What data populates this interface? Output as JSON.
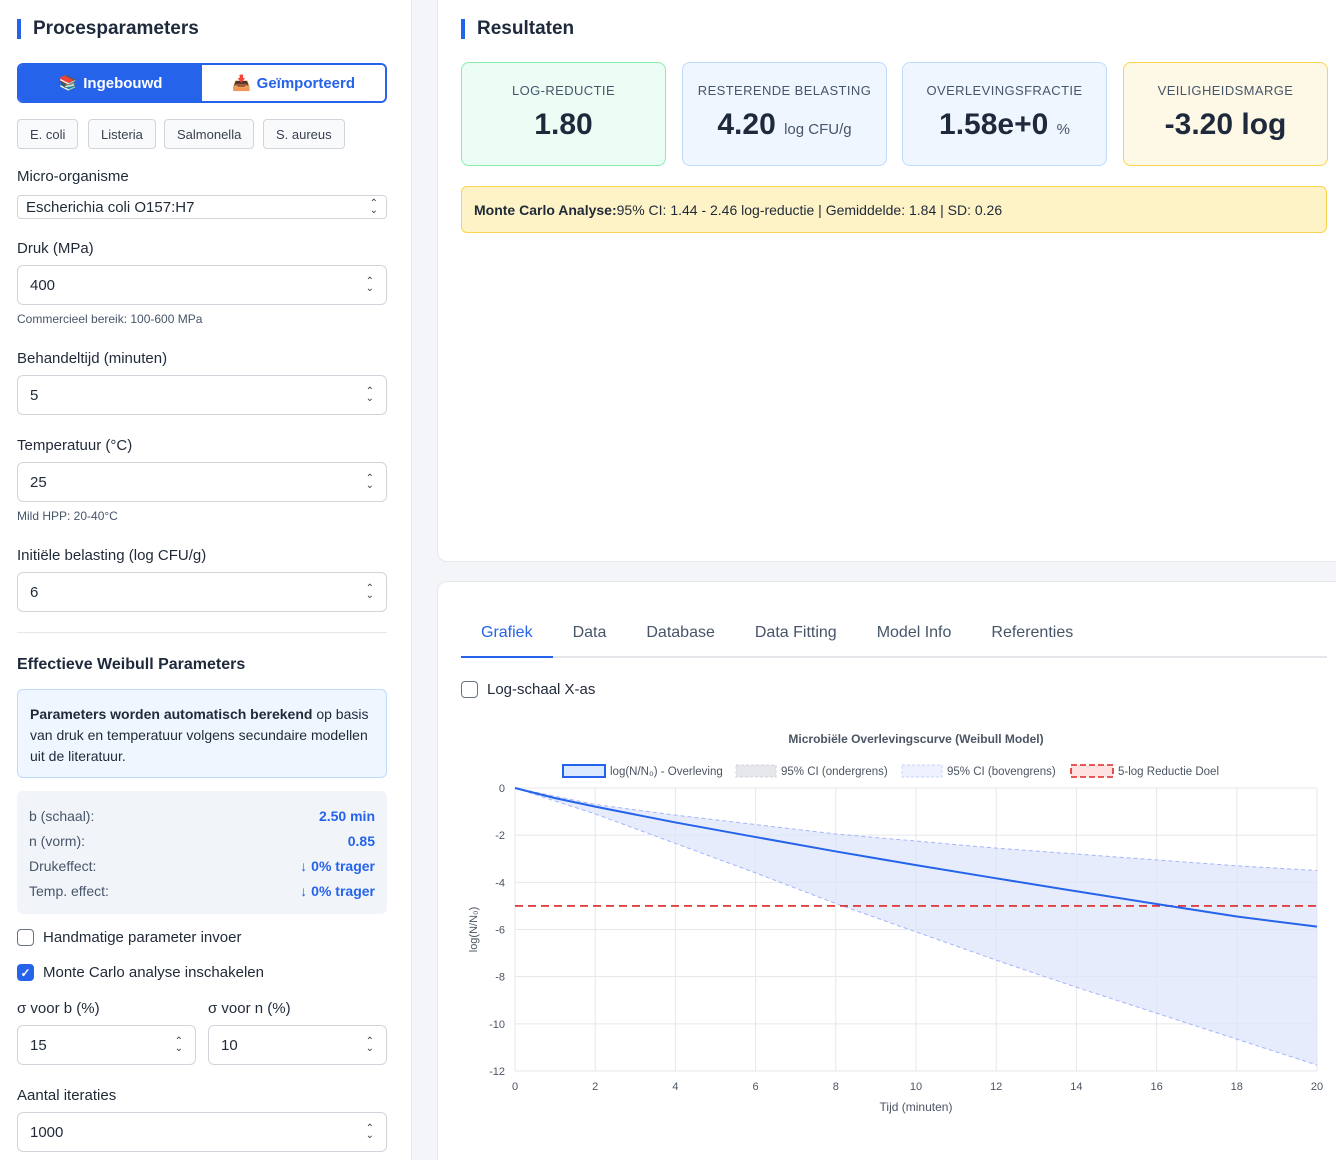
{
  "left": {
    "title": "Procesparameters",
    "mode_builtin": "Ingebouwd",
    "mode_imported": "Geïmporteerd",
    "presets": [
      "E. coli",
      "Listeria",
      "Salmonella",
      "S. aureus"
    ],
    "organism_label": "Micro-organisme",
    "organism_value": "Escherichia coli O157:H7",
    "pressure_label": "Druk (MPa)",
    "pressure_value": "400",
    "pressure_hint": "Commercieel bereik: 100-600 MPa",
    "time_label": "Behandeltijd (minuten)",
    "time_value": "5",
    "temp_label": "Temperatuur (°C)",
    "temp_value": "25",
    "temp_hint": "Mild HPP: 20-40°C",
    "load_label": "Initiële belasting (log CFU/g)",
    "load_value": "6",
    "weibull_title": "Effectieve Weibull Parameters",
    "info_bold": "Parameters worden automatisch berekend",
    "info_rest": " op basis van druk en temperatuur volgens secundaire modellen uit de literatuur.",
    "params": [
      {
        "k": "b (schaal):",
        "v": "2.50 min"
      },
      {
        "k": "n (vorm):",
        "v": "0.85"
      },
      {
        "k": "Drukeffect:",
        "v": "↓ 0% trager"
      },
      {
        "k": "Temp. effect:",
        "v": "↓ 0% trager"
      }
    ],
    "manual_label": "Handmatige parameter invoer",
    "manual_checked": false,
    "mc_label": "Monte Carlo analyse inschakelen",
    "mc_checked": true,
    "sigma_b_label": "σ voor b (%)",
    "sigma_b_value": "15",
    "sigma_n_label": "σ voor n (%)",
    "sigma_n_value": "10",
    "iter_label": "Aantal iteraties",
    "iter_value": "1000"
  },
  "results": {
    "title": "Resultaten",
    "log_reduction_label": "LOG-REDUCTIE",
    "log_reduction_value": "1.80",
    "remaining_label": "RESTERENDE BELASTING",
    "remaining_value": "4.20",
    "remaining_unit": "log CFU/g",
    "survival_label": "OVERLEVINGSFRACTIE",
    "survival_value": "1.58e+0",
    "survival_unit": "%",
    "margin_label": "VEILIGHEIDSMARGE",
    "margin_value": "-3.20 log",
    "mc_bold": "Monte Carlo Analyse:",
    "mc_rest": " 95% CI: 1.44 - 2.46 log-reductie | Gemiddelde: 1.84 | SD: 0.26"
  },
  "tabs": [
    "Grafiek",
    "Data",
    "Database",
    "Data Fitting",
    "Model Info",
    "Referenties"
  ],
  "active_tab": "Grafiek",
  "logscale_label": "Log-schaal X-as",
  "colors": {
    "accent": "#2563eb",
    "target": "#dc2626"
  },
  "chart_data": {
    "type": "line",
    "title": "Microbiële Overlevingscurve (Weibull Model)",
    "xlabel": "Tijd (minuten)",
    "ylabel": "log(N/N₀)",
    "xlim": [
      0,
      20
    ],
    "ylim": [
      -12,
      0
    ],
    "xticks": [
      0,
      2,
      4,
      6,
      8,
      10,
      12,
      14,
      16,
      18,
      20
    ],
    "yticks": [
      0,
      -2,
      -4,
      -6,
      -8,
      -10,
      -12
    ],
    "grid": true,
    "legend_position": "top",
    "series": [
      {
        "name": "log(N/N₀) - Overleving",
        "x": [
          0,
          1,
          2,
          4,
          6,
          8,
          10,
          12,
          14,
          16,
          18,
          20
        ],
        "y": [
          0,
          -0.43,
          -0.79,
          -1.46,
          -2.08,
          -2.69,
          -3.27,
          -3.83,
          -4.38,
          -4.92,
          -5.45,
          -5.88
        ]
      },
      {
        "name": "95% CI (ondergrens)",
        "x": [
          0,
          2,
          4,
          6,
          8,
          10,
          12,
          14,
          16,
          18,
          20
        ],
        "y": [
          0,
          -0.7,
          -1.15,
          -1.55,
          -1.95,
          -2.25,
          -2.55,
          -2.8,
          -3.05,
          -3.3,
          -3.5
        ]
      },
      {
        "name": "95% CI (bovengrens)",
        "x": [
          0,
          2,
          4,
          6,
          8,
          10,
          12,
          14,
          16,
          18,
          20
        ],
        "y": [
          0,
          -1.1,
          -2.35,
          -3.6,
          -4.9,
          -6.1,
          -7.3,
          -8.45,
          -9.55,
          -10.65,
          -11.75
        ]
      },
      {
        "name": "5-log Reductie Doel",
        "x": [
          0,
          20
        ],
        "y": [
          -5,
          -5
        ]
      }
    ]
  }
}
